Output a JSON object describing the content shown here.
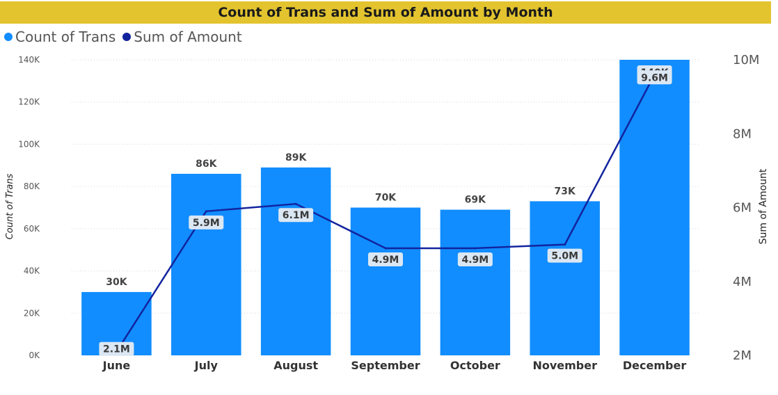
{
  "title": "Count of Trans and Sum of Amount by Month",
  "colors": {
    "title_bg": "#e3c42f",
    "bar": "#118dff",
    "line": "#12239e",
    "label_bg": "#dbe7f3"
  },
  "chart_data": {
    "type": "bar",
    "title": "Count of Trans and Sum of Amount by Month",
    "categories": [
      "June",
      "July",
      "August",
      "September",
      "October",
      "November",
      "December"
    ],
    "series": [
      {
        "name": "Count of Trans",
        "type": "bar",
        "axis": "left",
        "values": [
          30000,
          86000,
          89000,
          70000,
          69000,
          73000,
          140000
        ],
        "labels": [
          "30K",
          "86K",
          "89K",
          "70K",
          "69K",
          "73K",
          "140K"
        ]
      },
      {
        "name": "Sum of Amount",
        "type": "line",
        "axis": "right",
        "values": [
          2100000,
          5900000,
          6100000,
          4900000,
          4900000,
          5000000,
          9600000
        ],
        "labels": [
          "2.1M",
          "5.9M",
          "6.1M",
          "4.9M",
          "4.9M",
          "5.0M",
          "9.6M"
        ]
      }
    ],
    "ylabel": "Count of Trans",
    "y2label": "Sum of Amount",
    "ylim": [
      0,
      140000
    ],
    "y2lim": [
      2000000,
      10000000
    ],
    "yticks": [
      0,
      20000,
      40000,
      60000,
      80000,
      100000,
      120000,
      140000
    ],
    "yticklabels": [
      "0K",
      "20K",
      "40K",
      "60K",
      "80K",
      "100K",
      "120K",
      "140K"
    ],
    "y2ticks": [
      2000000,
      4000000,
      6000000,
      8000000,
      10000000
    ],
    "y2ticklabels": [
      "2M",
      "4M",
      "6M",
      "8M",
      "10M"
    ],
    "grid": true,
    "legend": "top-left"
  }
}
